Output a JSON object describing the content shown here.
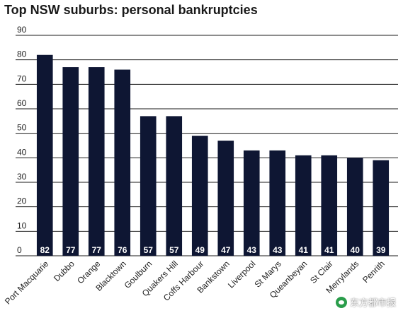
{
  "chart_data": {
    "type": "bar",
    "title": "Top NSW suburbs: personal bankruptcies",
    "xlabel": "",
    "ylabel": "",
    "ylim": [
      0,
      90
    ],
    "yticks": [
      "0",
      "10",
      "20",
      "30",
      "40",
      "50",
      "60",
      "70",
      "80",
      "90"
    ],
    "grid": true,
    "categories": [
      "Port Macquarie",
      "Dubbo",
      "Orange",
      "Blacktown",
      "Goulburn",
      "Quakers Hill",
      "Coffs Harbour",
      "Bankstown",
      "Liverpool",
      "St Marys",
      "Queanbeyan",
      "St Clair",
      "Merrylands",
      "Penrith"
    ],
    "values": [
      82,
      77,
      77,
      76,
      57,
      57,
      49,
      47,
      43,
      43,
      41,
      41,
      40,
      39
    ],
    "data_labels": [
      "82",
      "77",
      "77",
      "76",
      "57",
      "57",
      "49",
      "47",
      "43",
      "43",
      "41",
      "41",
      "40",
      "39"
    ],
    "bar_color": "#0e1633",
    "label_color": "#ffffff"
  },
  "watermark": {
    "text": "东方都市报",
    "icon": "wechat-icon"
  }
}
